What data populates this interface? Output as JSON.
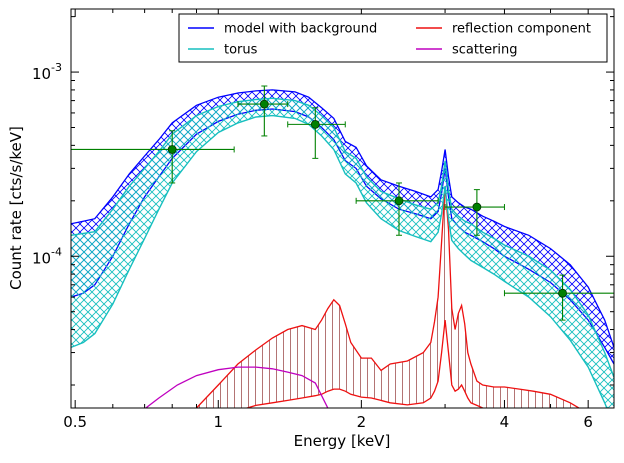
{
  "chart_data": {
    "type": "line",
    "title": "",
    "xlabel": "Energy [keV]",
    "ylabel": "Count rate [cts/s/keV]",
    "xscale": "log",
    "yscale": "log",
    "xlim": [
      0.49,
      6.8
    ],
    "ylim": [
      1.5e-05,
      0.0022
    ],
    "grid": false,
    "legend_position": "top-right",
    "x_ticks": [
      {
        "value": 0.5,
        "label": "0.5"
      },
      {
        "value": 1,
        "label": "1"
      },
      {
        "value": 2,
        "label": "2"
      },
      {
        "value": 4,
        "label": "4"
      },
      {
        "value": 6,
        "label": "6"
      }
    ],
    "y_ticks": [
      {
        "value": 0.001,
        "base": "10",
        "exp": "-3"
      },
      {
        "value": 0.0001,
        "base": "10",
        "exp": "-4"
      }
    ],
    "colors": {
      "model": "#0000ff",
      "torus": "#17bfbf",
      "reflection": "#ee1111",
      "scattering": "#bf00bf",
      "data": "#008000",
      "hatch_reflection": "#a05050"
    },
    "legend": [
      {
        "label": "model with background",
        "color": "#0000ff"
      },
      {
        "label": "reflection component",
        "color": "#ee1111"
      },
      {
        "label": "torus",
        "color": "#17bfbf"
      },
      {
        "label": "scattering",
        "color": "#bf00bf"
      }
    ],
    "series": [
      {
        "name": "model with background",
        "color": "#0000ff",
        "style": "band",
        "x": [
          0.49,
          0.52,
          0.55,
          0.6,
          0.65,
          0.7,
          0.75,
          0.8,
          0.9,
          1.0,
          1.1,
          1.2,
          1.3,
          1.45,
          1.55,
          1.65,
          1.75,
          1.85,
          1.95,
          2.05,
          2.2,
          2.4,
          2.6,
          2.8,
          2.9,
          2.95,
          3.0,
          3.05,
          3.1,
          3.2,
          3.3,
          3.4,
          3.6,
          3.8,
          4.0,
          4.5,
          5.0,
          5.5,
          6.0,
          6.5,
          6.8
        ],
        "upper": [
          0.00015,
          0.000155,
          0.00016,
          0.00021,
          0.00028,
          0.00035,
          0.00043,
          0.00053,
          0.00066,
          0.00073,
          0.00077,
          0.00079,
          0.0008,
          0.00078,
          0.00073,
          0.00064,
          0.00056,
          0.00042,
          0.00039,
          0.00031,
          0.00026,
          0.00024,
          0.000225,
          0.00021,
          0.00023,
          0.00029,
          0.00038,
          0.00027,
          0.00021,
          0.000195,
          0.000185,
          0.00018,
          0.000165,
          0.000155,
          0.000145,
          0.00013,
          0.00011,
          9e-05,
          6.8e-05,
          4.5e-05,
          3.2e-05
        ],
        "lower": [
          6e-05,
          6.3e-05,
          7e-05,
          0.0001,
          0.00015,
          0.00021,
          0.00027,
          0.00034,
          0.00046,
          0.00054,
          0.00059,
          0.00062,
          0.00063,
          0.00061,
          0.00057,
          0.0005,
          0.00043,
          0.00033,
          0.0003,
          0.00024,
          0.000205,
          0.00018,
          0.00017,
          0.00016,
          0.000175,
          0.00022,
          0.0003,
          0.00021,
          0.00016,
          0.000145,
          0.000135,
          0.00013,
          0.00012,
          0.00011,
          0.0001,
          8.5e-05,
          7.2e-05,
          5.8e-05,
          4.5e-05,
          3.2e-05,
          2.6e-05
        ]
      },
      {
        "name": "torus",
        "color": "#17bfbf",
        "style": "band",
        "x": [
          0.49,
          0.52,
          0.55,
          0.6,
          0.65,
          0.7,
          0.75,
          0.8,
          0.9,
          1.0,
          1.1,
          1.2,
          1.3,
          1.45,
          1.55,
          1.65,
          1.75,
          1.85,
          1.95,
          2.05,
          2.2,
          2.4,
          2.6,
          2.8,
          2.9,
          2.95,
          3.0,
          3.05,
          3.1,
          3.2,
          3.3,
          3.4,
          3.6,
          3.8,
          4.0,
          4.5,
          5.0,
          5.5,
          6.0,
          6.5,
          6.8
        ],
        "upper": [
          0.00013,
          0.000133,
          0.000136,
          0.00018,
          0.00024,
          0.0003,
          0.00037,
          0.00046,
          0.00058,
          0.00065,
          0.00069,
          0.00071,
          0.00072,
          0.0007,
          0.00066,
          0.00058,
          0.0005,
          0.00037,
          0.00034,
          0.00027,
          0.000225,
          0.000205,
          0.00019,
          0.00018,
          0.000195,
          0.00024,
          0.00033,
          0.00023,
          0.00018,
          0.000165,
          0.000155,
          0.00015,
          0.000135,
          0.000125,
          0.000115,
          0.0001,
          8.4e-05,
          6.6e-05,
          4.8e-05,
          3e-05,
          2.2e-05
        ],
        "lower": [
          3.2e-05,
          3.4e-05,
          3.8e-05,
          5.5e-05,
          8.5e-05,
          0.000125,
          0.00018,
          0.00025,
          0.00037,
          0.00047,
          0.00053,
          0.00057,
          0.00058,
          0.00056,
          0.00052,
          0.00045,
          0.00038,
          0.00028,
          0.00025,
          0.000195,
          0.00016,
          0.000138,
          0.000128,
          0.00012,
          0.000135,
          0.00017,
          0.00024,
          0.00016,
          0.000122,
          0.00011,
          0.000102,
          9.5e-05,
          8.7e-05,
          8e-05,
          7.3e-05,
          6e-05,
          4.7e-05,
          3.5e-05,
          2.5e-05,
          1.6e-05,
          1.2e-05
        ]
      },
      {
        "name": "reflection component",
        "color": "#ee1111",
        "style": "hatched",
        "x": [
          0.8,
          0.9,
          1.0,
          1.1,
          1.2,
          1.3,
          1.4,
          1.5,
          1.6,
          1.65,
          1.7,
          1.75,
          1.8,
          1.85,
          1.9,
          2.0,
          2.1,
          2.2,
          2.3,
          2.5,
          2.7,
          2.8,
          2.85,
          2.9,
          2.95,
          3.0,
          3.05,
          3.1,
          3.15,
          3.2,
          3.25,
          3.3,
          3.35,
          3.4,
          3.5,
          3.6,
          3.8,
          4.0,
          4.3,
          4.6,
          5.0,
          5.5,
          6.0,
          6.5,
          6.8
        ],
        "upper": [
          1.2e-05,
          1.5e-05,
          2e-05,
          2.6e-05,
          3.1e-05,
          3.6e-05,
          4e-05,
          4.2e-05,
          4e-05,
          4.5e-05,
          5.2e-05,
          5.8e-05,
          5.4e-05,
          4.3e-05,
          3.4e-05,
          2.8e-05,
          2.8e-05,
          2.4e-05,
          2.6e-05,
          2.7e-05,
          3e-05,
          3.4e-05,
          4.4e-05,
          6e-05,
          0.00012,
          0.00024,
          0.00014,
          5.2e-05,
          4e-05,
          4.9e-05,
          5.4e-05,
          4.3e-05,
          3e-05,
          2.6e-05,
          2.1e-05,
          2e-05,
          1.95e-05,
          1.95e-05,
          1.9e-05,
          1.85e-05,
          1.78e-05,
          1.6e-05,
          1.4e-05,
          1.25e-05,
          1.2e-05
        ],
        "lower": [
          1e-05,
          1.1e-05,
          1.3e-05,
          1.45e-05,
          1.55e-05,
          1.6e-05,
          1.65e-05,
          1.7e-05,
          1.75e-05,
          1.78e-05,
          1.85e-05,
          1.9e-05,
          1.9e-05,
          1.85e-05,
          1.78e-05,
          1.72e-05,
          1.7e-05,
          1.65e-05,
          1.6e-05,
          1.56e-05,
          1.6e-05,
          1.7e-05,
          1.85e-05,
          2.1e-05,
          3e-05,
          4.5e-05,
          3e-05,
          2e-05,
          1.85e-05,
          1.9e-05,
          2e-05,
          1.85e-05,
          1.7e-05,
          1.6e-05,
          1.55e-05,
          1.5e-05,
          1.45e-05,
          1.4e-05,
          1.35e-05,
          1.3e-05,
          1.25e-05,
          1.2e-05,
          1.1e-05,
          1e-05,
          1e-05
        ]
      },
      {
        "name": "scattering",
        "color": "#bf00bf",
        "style": "line",
        "x": [
          0.68,
          0.75,
          0.82,
          0.9,
          1.0,
          1.1,
          1.2,
          1.3,
          1.4,
          1.5,
          1.6,
          1.7
        ],
        "y": [
          1.4e-05,
          1.7e-05,
          2e-05,
          2.25e-05,
          2.42e-05,
          2.5e-05,
          2.5e-05,
          2.45e-05,
          2.35e-05,
          2.25e-05,
          2.05e-05,
          1.5e-05
        ]
      }
    ],
    "data_points": [
      {
        "x": 0.8,
        "xerr": [
          0.49,
          1.08
        ],
        "y": 0.00038,
        "yerr": [
          0.00025,
          0.00048
        ]
      },
      {
        "x": 1.25,
        "xerr": [
          1.1,
          1.4
        ],
        "y": 0.00067,
        "yerr": [
          0.00045,
          0.00084
        ]
      },
      {
        "x": 1.6,
        "xerr": [
          1.4,
          1.85
        ],
        "y": 0.00052,
        "yerr": [
          0.00034,
          0.00064
        ]
      },
      {
        "x": 2.4,
        "xerr": [
          1.95,
          2.9
        ],
        "y": 0.0002,
        "yerr": [
          0.00013,
          0.00025
        ]
      },
      {
        "x": 3.5,
        "xerr": [
          3.0,
          4.0
        ],
        "y": 0.000185,
        "yerr": [
          0.00013,
          0.00023
        ]
      },
      {
        "x": 5.3,
        "xerr": [
          4.0,
          6.8
        ],
        "y": 6.3e-05,
        "yerr": [
          4.5e-05,
          7.9e-05
        ]
      }
    ]
  }
}
